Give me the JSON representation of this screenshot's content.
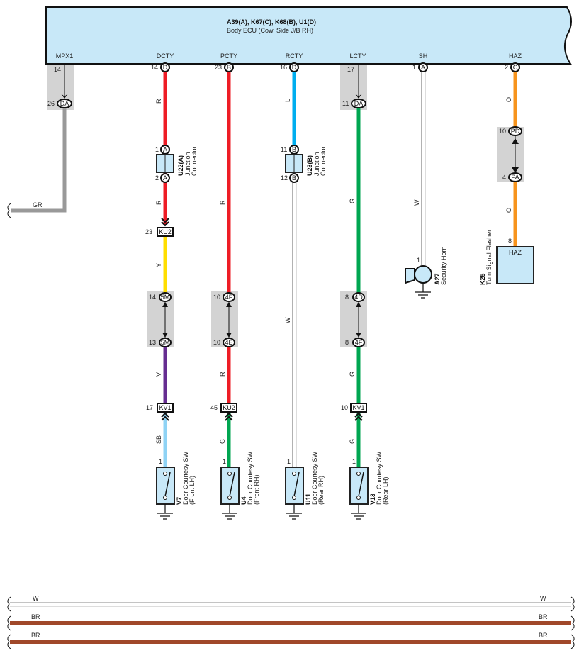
{
  "ecu": {
    "codes": "A39(A), K67(C), K68(B), U1(D)",
    "name": "Body ECU (Cowl Side J/B RH)",
    "pins": [
      "MPX1",
      "DCTY",
      "PCTY",
      "RCTY",
      "LCTY",
      "SH",
      "HAZ"
    ]
  },
  "colors": {
    "R": "#ee1c25",
    "L": "#00aeef",
    "G": "#00a651",
    "O": "#f7941d",
    "Y": "#ffde00",
    "V": "#662d91",
    "SB": "#8fd3f5",
    "GR": "#999999",
    "BR": "#a0482a",
    "W": "#ffffff",
    "ecu_fill": "#c8e8f8",
    "connector_box": "#d3d3d3"
  },
  "mpx1": {
    "pin_top": "14",
    "conn": "DA",
    "pin_bottom": "26",
    "wire": "GR"
  },
  "dcty": {
    "ecu_pin": "14",
    "ecu_conn": "D",
    "wire1": "R",
    "j_pin_in": "1",
    "j_pin_out": "2",
    "j_conn": "A",
    "junction_code": "U22(A)",
    "junction_name1": "Junction",
    "junction_name2": "Connector",
    "wire2": "R",
    "ku_pin": "23",
    "ku_conn": "KU2",
    "wire3": "Y",
    "c1_pin": "14",
    "c1": "5M",
    "c2_pin": "13",
    "c2": "5M",
    "wire4": "V",
    "kv_pin": "17",
    "kv_conn": "KV1",
    "wire5": "SB",
    "sw_pin": "1",
    "sw_code": "V7",
    "sw_name": "Door Courtesy SW",
    "sw_pos": "(Front LH)"
  },
  "pcty": {
    "ecu_pin": "23",
    "ecu_conn": "B",
    "wire1": "R",
    "c1_pin": "10",
    "c1": "4F",
    "c2_pin": "10",
    "c2": "4E",
    "wire2": "R",
    "ku_pin": "45",
    "ku_conn": "KU2",
    "wire3": "G",
    "sw_pin": "1",
    "sw_code": "U4",
    "sw_name": "Door Courtesy SW",
    "sw_pos": "(Front RH)"
  },
  "rcty": {
    "ecu_pin": "16",
    "ecu_conn": "D",
    "wire1": "L",
    "j_pin_in": "11",
    "j_pin_out": "12",
    "j_conn": "B",
    "junction_code": "U23(B)",
    "junction_name1": "Junction",
    "junction_name2": "Connector",
    "wire2": "W",
    "sw_pin": "1",
    "sw_code": "U11",
    "sw_name": "Door Courtesy SW",
    "sw_pos": "(Rear RH)"
  },
  "lcty": {
    "pin_top": "17",
    "conn": "DA",
    "pin_bottom": "11",
    "wire1": "G",
    "c1_pin": "8",
    "c1": "4D",
    "c2_pin": "8",
    "c2": "4F",
    "wire2": "G",
    "kv_pin": "10",
    "kv_conn": "KV1",
    "wire3": "G",
    "sw_pin": "1",
    "sw_code": "V13",
    "sw_name": "Door Courtesy SW",
    "sw_pos": "(Rear LH)"
  },
  "sh": {
    "ecu_pin": "1",
    "ecu_conn": "A",
    "wire": "W",
    "horn_pin": "1",
    "horn_code": "A27",
    "horn_name": "Security Horn"
  },
  "haz": {
    "ecu_pin": "2",
    "ecu_conn": "C",
    "wire1": "O",
    "c1_pin": "10",
    "c1": "PD",
    "c2_pin": "4",
    "c2": "PA",
    "wire2": "O",
    "flasher_pin": "8",
    "flasher_terminal": "HAZ",
    "flasher_code": "K25",
    "flasher_name": "Turn Signal Flasher"
  },
  "bus": [
    {
      "wire": "W"
    },
    {
      "wire": "BR"
    },
    {
      "wire": "BR"
    }
  ]
}
